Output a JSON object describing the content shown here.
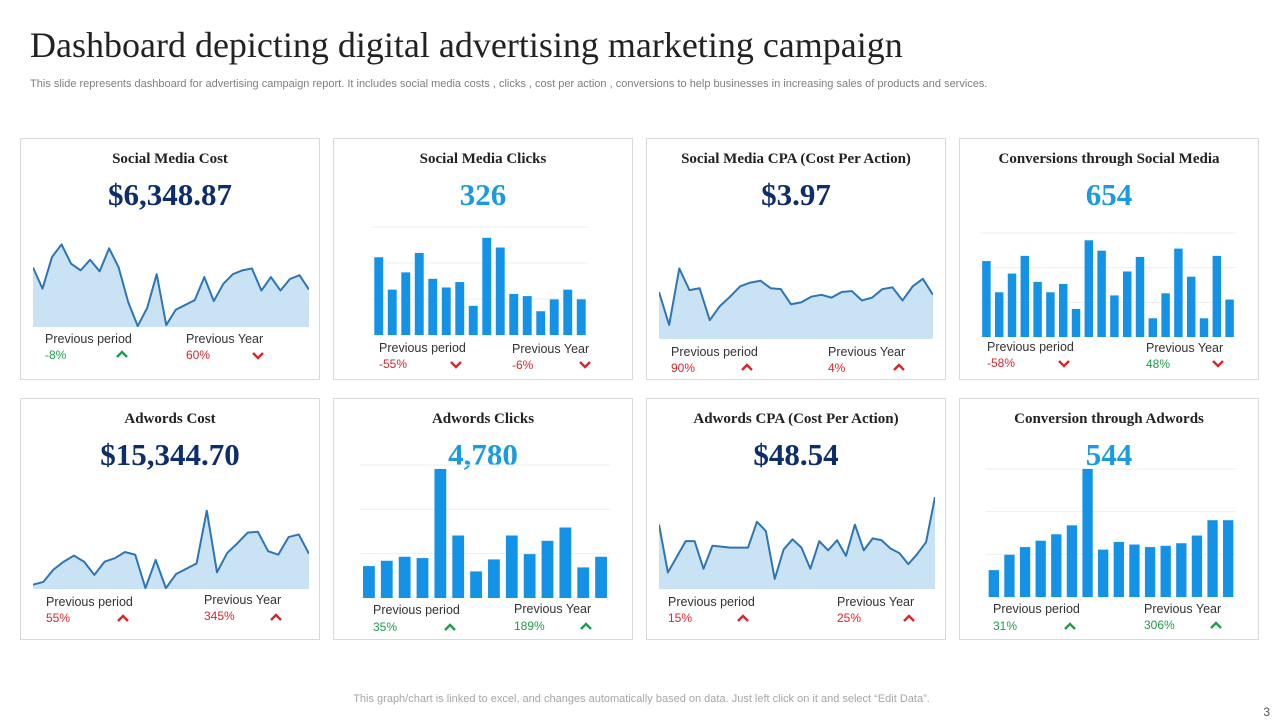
{
  "title": "Dashboard depicting digital advertising marketing campaign",
  "subtitle": "This slide represents  dashboard for  advertising campaign report. It includes social media costs , clicks , cost per action , conversions to help businesses in increasing sales of products and services.",
  "footer": "This graph/chart is linked to excel,  and changes automatically based on data. Just left click on it and select “Edit Data”.",
  "page_number": "3",
  "colors": {
    "dark_metric": "#0d2d6b",
    "light_metric": "#1a9ae0",
    "bar": "#1492e6",
    "line": "#2e75b6",
    "area": "#c9e3f5",
    "up": "#1e9e4a",
    "down": "#d9262c"
  },
  "cards": [
    {
      "title": "Social Media Cost",
      "value": "$6,348.87",
      "value_style": "dark",
      "prev_period_label": "Previous  period",
      "prev_period_pct": "-8%",
      "prev_period_trend": "up",
      "prev_year_label": "Previous  Year",
      "prev_year_pct": "60%",
      "prev_year_trend": "down"
    },
    {
      "title": "Social Media Clicks",
      "value": "326",
      "value_style": "light",
      "prev_period_label": "Previous  period",
      "prev_period_pct": "-55%",
      "prev_period_trend": "down",
      "prev_year_label": "Previous  Year",
      "prev_year_pct": "-6%",
      "prev_year_trend": "down"
    },
    {
      "title": "Social Media CPA (Cost Per Action)",
      "value": "$3.97",
      "value_style": "dark",
      "prev_period_label": "Previous  period",
      "prev_period_pct": "90%",
      "prev_period_trend": "down-up",
      "prev_year_label": "Previous  Year",
      "prev_year_pct": "4%",
      "prev_year_trend": "down-up"
    },
    {
      "title": "Conversions through  Social Media",
      "value": "654",
      "value_style": "light",
      "prev_period_label": "Previous  period",
      "prev_period_pct": "-58%",
      "prev_period_trend": "down",
      "prev_year_label": "Previous  Year",
      "prev_year_pct": "48%",
      "prev_year_trend": "up-down"
    },
    {
      "title": "Adwords  Cost",
      "value": "$15,344.70",
      "value_style": "dark",
      "prev_period_label": "Previous  period",
      "prev_period_pct": "55%",
      "prev_period_trend": "down-up",
      "prev_year_label": "Previous  Year",
      "prev_year_pct": "345%",
      "prev_year_trend": "down-up"
    },
    {
      "title": "Adwords  Clicks",
      "value": "4,780",
      "value_style": "light",
      "prev_period_label": "Previous  period",
      "prev_period_pct": "35%",
      "prev_period_trend": "up",
      "prev_year_label": "Previous  Year",
      "prev_year_pct": "189%",
      "prev_year_trend": "up"
    },
    {
      "title": "Adwords  CPA (Cost Per Action)",
      "value": "$48.54",
      "value_style": "dark",
      "prev_period_label": "Previous  period",
      "prev_period_pct": "15%",
      "prev_period_trend": "down-up",
      "prev_year_label": "Previous  Year",
      "prev_year_pct": "25%",
      "prev_year_trend": "down-up"
    },
    {
      "title": "Conversion through Adwords",
      "value": "544",
      "value_style": "light",
      "prev_period_label": "Previous  period",
      "prev_period_pct": "31%",
      "prev_period_trend": "up",
      "prev_year_label": "Previous  Year",
      "prev_year_pct": "306%",
      "prev_year_trend": "up"
    }
  ],
  "chart_data": [
    {
      "type": "area",
      "title": "Social Media Cost",
      "ylim": [
        0,
        100
      ],
      "values": [
        62,
        40,
        73,
        86,
        66,
        59,
        70,
        58,
        82,
        62,
        26,
        1,
        20,
        55,
        2,
        18,
        23,
        28,
        52,
        27,
        45,
        55,
        59,
        61,
        38,
        52,
        38,
        50,
        54,
        39
      ]
    },
    {
      "type": "bar",
      "title": "Social Media Clicks",
      "ylim": [
        0,
        100
      ],
      "values": [
        72,
        42,
        58,
        76,
        52,
        44,
        49,
        27,
        90,
        81,
        38,
        36,
        22,
        33,
        42,
        33
      ]
    },
    {
      "type": "area",
      "title": "Social Media CPA (Cost Per Action)",
      "ylim": [
        0,
        100
      ],
      "values": [
        50,
        15,
        75,
        52,
        54,
        20,
        35,
        45,
        56,
        60,
        62,
        54,
        53,
        37,
        39,
        45,
        47,
        44,
        50,
        51,
        41,
        44,
        53,
        55,
        41,
        56,
        64,
        47
      ]
    },
    {
      "type": "bar",
      "title": "Conversions through Social Media",
      "ylim": [
        0,
        100
      ],
      "values": [
        73,
        43,
        61,
        78,
        53,
        43,
        51,
        27,
        93,
        83,
        40,
        63,
        77,
        18,
        42,
        85,
        58,
        18,
        78,
        36
      ]
    },
    {
      "type": "area",
      "title": "Adwords Cost",
      "ylim": [
        0,
        100
      ],
      "values": [
        5,
        8,
        22,
        31,
        38,
        31,
        16,
        31,
        35,
        42,
        39,
        1,
        33,
        1,
        17,
        23,
        29,
        89,
        19,
        41,
        52,
        64,
        65,
        43,
        39,
        59,
        62,
        40
      ]
    },
    {
      "type": "bar",
      "title": "Adwords Clicks",
      "ylim": [
        0,
        100
      ],
      "values": [
        24,
        28,
        31,
        30,
        97,
        47,
        20,
        29,
        47,
        33,
        43,
        53,
        23,
        31
      ]
    },
    {
      "type": "area",
      "title": "Adwords CPA (Cost Per Action)",
      "ylim": [
        0,
        100
      ],
      "values": [
        70,
        18,
        35,
        52,
        52,
        22,
        47,
        46,
        45,
        45,
        45,
        73,
        63,
        11,
        43,
        54,
        45,
        22,
        52,
        42,
        53,
        36,
        70,
        42,
        55,
        53,
        44,
        39,
        27,
        38,
        51,
        100
      ]
    },
    {
      "type": "bar",
      "title": "Conversion through Adwords",
      "ylim": [
        0,
        100
      ],
      "values": [
        21,
        33,
        39,
        44,
        49,
        56,
        100,
        37,
        43,
        41,
        39,
        40,
        42,
        48,
        60,
        60
      ]
    }
  ]
}
